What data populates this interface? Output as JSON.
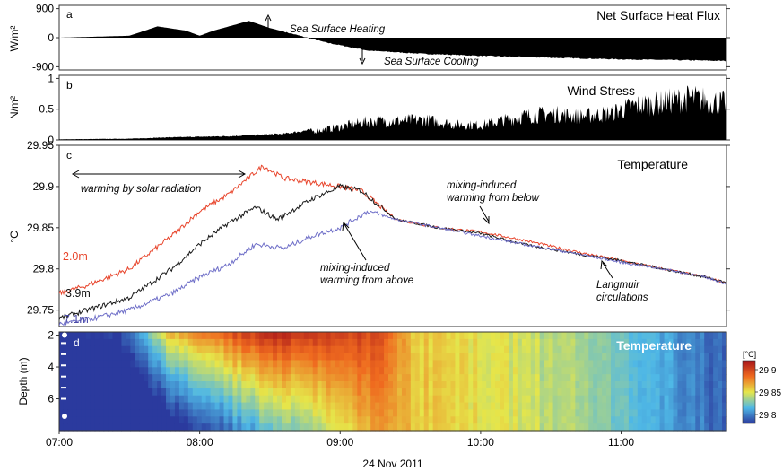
{
  "chart_data": [
    {
      "panel": "a",
      "type": "area",
      "title": "Net Surface Heat Flux",
      "ylabel": "W/m²",
      "ylim": [
        -1000,
        1000
      ],
      "yticks": [
        "900",
        "0",
        "-900"
      ],
      "ytick_values": [
        900,
        0,
        -900
      ],
      "x": [
        7.0,
        7.5,
        7.7,
        7.9,
        8.0,
        8.1,
        8.35,
        8.5,
        8.9,
        9.2,
        9.6,
        10.0,
        10.5,
        11.0,
        11.5,
        11.75
      ],
      "y": [
        0,
        60,
        350,
        220,
        60,
        220,
        520,
        300,
        -150,
        -400,
        -500,
        -560,
        -620,
        -670,
        -700,
        -720
      ],
      "annotations": [
        "Sea Surface Heating",
        "Sea Surface Cooling"
      ],
      "fill_color": "#000000"
    },
    {
      "panel": "b",
      "type": "area",
      "title": "Wind Stress",
      "ylabel": "N/m²",
      "ylim": [
        0,
        1.05
      ],
      "yticks": [
        "1",
        "0.5",
        "0"
      ],
      "ytick_values": [
        1,
        0.5,
        0
      ],
      "x": [
        7.0,
        7.5,
        7.75,
        8.2,
        8.6,
        8.9,
        9.2,
        9.6,
        9.8,
        10.0,
        10.3,
        10.5,
        10.7,
        10.9,
        11.1,
        11.3,
        11.5,
        11.75
      ],
      "y": [
        0.01,
        0.02,
        0.04,
        0.06,
        0.1,
        0.2,
        0.35,
        0.38,
        0.3,
        0.28,
        0.45,
        0.5,
        0.45,
        0.5,
        0.65,
        0.72,
        0.8,
        0.7
      ],
      "fill_color": "#000000"
    },
    {
      "panel": "c",
      "type": "line",
      "title": "Temperature",
      "ylabel": "°C",
      "ylim": [
        29.73,
        29.95
      ],
      "yticks": [
        "29.95",
        "29.9",
        "29.85",
        "29.8",
        "29.75"
      ],
      "ytick_values": [
        29.95,
        29.9,
        29.85,
        29.8,
        29.75
      ],
      "series": [
        {
          "name": "2.0m",
          "color": "#e8452c",
          "x": [
            7.0,
            7.2,
            7.5,
            7.8,
            8.0,
            8.2,
            8.45,
            8.6,
            8.8,
            9.0,
            9.15,
            9.4,
            9.7,
            10.0,
            10.3,
            10.7,
            11.0,
            11.3,
            11.6,
            11.75
          ],
          "y": [
            29.77,
            29.78,
            29.8,
            29.84,
            29.87,
            29.89,
            29.925,
            29.91,
            29.905,
            29.9,
            29.895,
            29.86,
            29.85,
            29.845,
            29.835,
            29.82,
            29.81,
            29.8,
            29.79,
            29.783
          ]
        },
        {
          "name": "3.9m",
          "color": "#1a1a1a",
          "x": [
            7.0,
            7.2,
            7.5,
            7.8,
            8.0,
            8.2,
            8.4,
            8.55,
            8.8,
            9.0,
            9.15,
            9.4,
            9.7,
            10.0,
            10.3,
            10.7,
            11.0,
            11.3,
            11.6,
            11.75
          ],
          "y": [
            29.74,
            29.75,
            29.765,
            29.8,
            29.83,
            29.855,
            29.875,
            29.86,
            29.885,
            29.9,
            29.895,
            29.86,
            29.85,
            29.843,
            29.83,
            29.818,
            29.81,
            29.8,
            29.79,
            29.783
          ]
        },
        {
          "name": "7.1m",
          "color": "#6f6fc8",
          "x": [
            7.0,
            7.2,
            7.5,
            7.8,
            8.0,
            8.2,
            8.4,
            8.6,
            8.8,
            9.0,
            9.2,
            9.4,
            9.7,
            10.0,
            10.3,
            10.7,
            11.0,
            11.3,
            11.6,
            11.75
          ],
          "y": [
            29.733,
            29.738,
            29.75,
            29.77,
            29.79,
            29.805,
            29.83,
            29.825,
            29.84,
            29.85,
            29.87,
            29.86,
            29.85,
            29.84,
            29.83,
            29.818,
            29.808,
            29.8,
            29.79,
            29.782
          ]
        }
      ],
      "annotations": [
        "warming by solar radiation",
        "mixing-induced warming from below",
        "mixing-induced warming from above",
        "Langmuir circulations"
      ]
    },
    {
      "panel": "d",
      "type": "heatmap",
      "title": "Temperature",
      "ylabel": "Depth (m)",
      "yticks": [
        "2",
        "4",
        "6"
      ],
      "ytick_values": [
        2,
        4,
        6
      ],
      "ylim": [
        8,
        1.8
      ],
      "xticks": [
        "07:00",
        "08:00",
        "09:00",
        "10:00",
        "11:00"
      ],
      "xtick_values": [
        7,
        8,
        9,
        10,
        11
      ],
      "xlabel": "24 Nov 2011",
      "colorbar": {
        "label": "[°C]",
        "ticks": [
          "29.9",
          "29.85",
          "29.8"
        ],
        "tick_values": [
          29.9,
          29.85,
          29.8
        ],
        "range": [
          29.78,
          29.92
        ]
      },
      "columns_time": [
        7.0,
        7.5,
        7.75,
        8.0,
        8.25,
        8.5,
        8.75,
        9.0,
        9.25,
        9.5,
        10.0,
        10.5,
        11.0,
        11.5,
        11.75
      ],
      "surface_values": [
        29.77,
        29.79,
        29.86,
        29.88,
        29.9,
        29.915,
        29.91,
        29.905,
        29.9,
        29.86,
        29.85,
        29.84,
        29.825,
        29.8,
        29.79
      ],
      "bottom_values": [
        29.735,
        29.74,
        29.76,
        29.78,
        29.8,
        29.82,
        29.83,
        29.85,
        29.87,
        29.86,
        29.85,
        29.84,
        29.825,
        29.8,
        29.79
      ],
      "sensor_markers_depth": [
        2.0,
        2.5,
        3.2,
        3.9,
        4.6,
        5.3,
        6.0,
        7.1
      ]
    }
  ]
}
